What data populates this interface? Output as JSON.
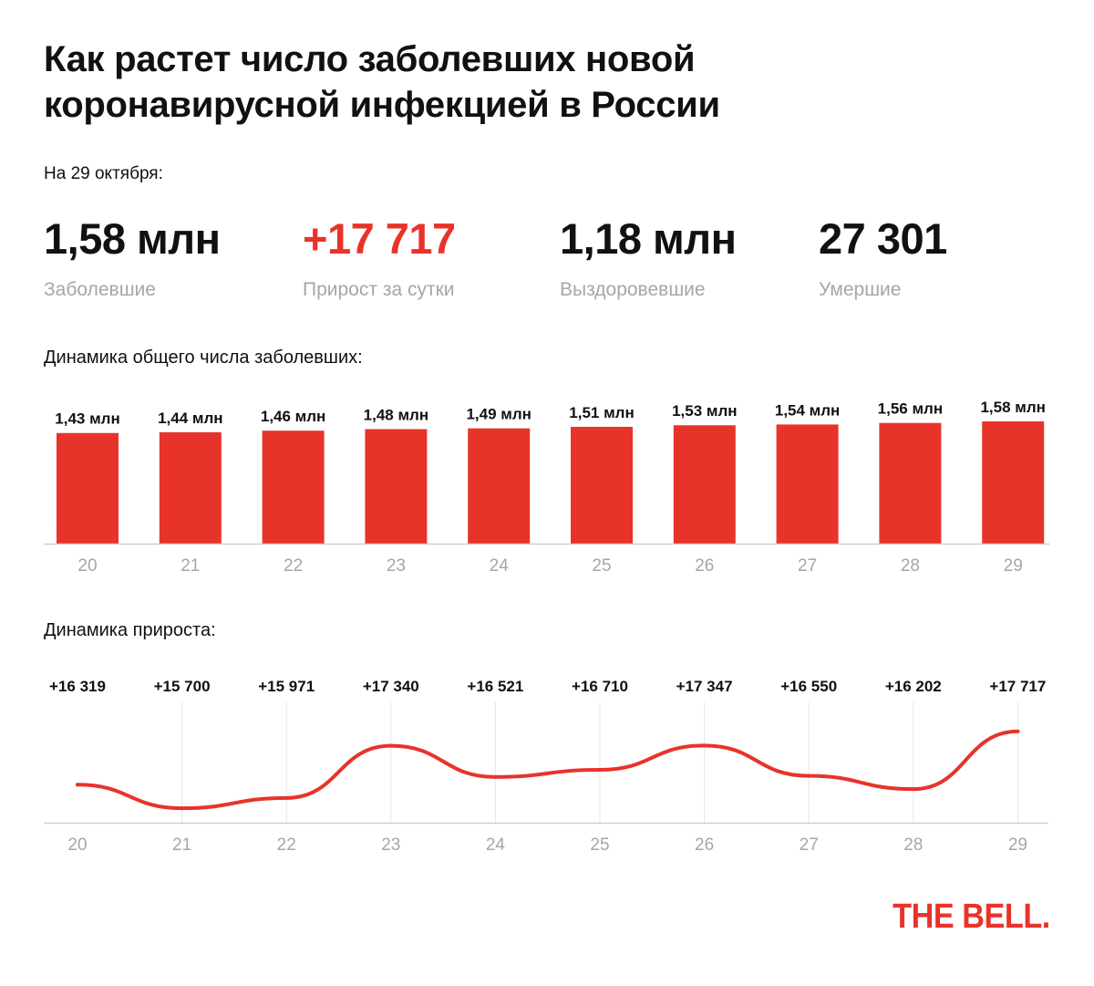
{
  "title_lines": [
    "Как растет число заболевших новой",
    "коронавирусной инфекцией в России"
  ],
  "as_of": "На 29 октября:",
  "stats": [
    {
      "value": "1,58 млн",
      "label": "Заболевшие"
    },
    {
      "value": "+17 717",
      "label": "Прирост за сутки"
    },
    {
      "value": "1,18 млн",
      "label": "Выздоровевшие"
    },
    {
      "value": "27 301",
      "label": "Умершие"
    }
  ],
  "colors": {
    "accent": "#e8332a",
    "text": "#111111",
    "muted": "#a6a6a6",
    "grid": "#dddddd",
    "axis": "#cfcfcf"
  },
  "chart_data": [
    {
      "type": "bar",
      "title": "Динамика общего числа заболевших:",
      "categories": [
        "20",
        "21",
        "22",
        "23",
        "24",
        "25",
        "26",
        "27",
        "28",
        "29"
      ],
      "values": [
        1.43,
        1.44,
        1.46,
        1.48,
        1.49,
        1.51,
        1.53,
        1.54,
        1.56,
        1.58
      ],
      "value_labels": [
        "1,43 млн",
        "1,44 млн",
        "1,46 млн",
        "1,48 млн",
        "1,49 млн",
        "1,51 млн",
        "1,53 млн",
        "1,54 млн",
        "1,56 млн",
        "1,58 млн"
      ],
      "unit": "млн",
      "xlabel": "",
      "ylabel": "",
      "ylim": [
        0,
        1.58
      ],
      "grid": false
    },
    {
      "type": "line",
      "title": "Динамика прироста:",
      "categories": [
        "20",
        "21",
        "22",
        "23",
        "24",
        "25",
        "26",
        "27",
        "28",
        "29"
      ],
      "values": [
        16319,
        15700,
        15971,
        17340,
        16521,
        16710,
        17347,
        16550,
        16202,
        17717
      ],
      "value_labels": [
        "+16 319",
        "+15 700",
        "+15 971",
        "+17 340",
        "+16 521",
        "+16 710",
        "+17 347",
        "+16 550",
        "+16 202",
        "+17 717"
      ],
      "xlabel": "",
      "ylabel": "",
      "ylim": [
        15320,
        18050
      ],
      "grid": true
    }
  ],
  "logo": "THE BELL."
}
